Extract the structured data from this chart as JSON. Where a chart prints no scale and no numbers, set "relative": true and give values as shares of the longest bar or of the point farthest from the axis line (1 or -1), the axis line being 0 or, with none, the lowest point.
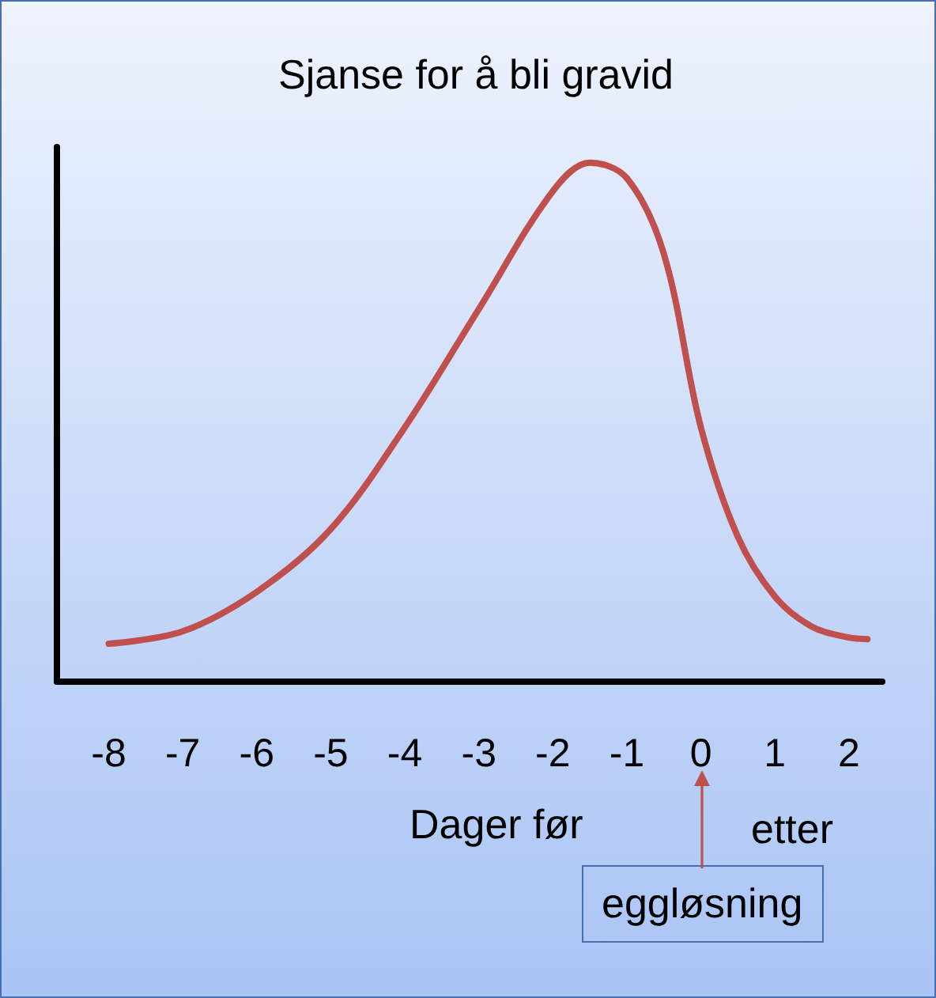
{
  "chart_data": {
    "type": "line",
    "title": "Sjanse for å bli gravid",
    "relative": true,
    "x": [
      -8,
      -7,
      -6,
      -5,
      -4,
      -3,
      -2,
      -1.5,
      -1,
      -0.5,
      0,
      0.5,
      1,
      1.5,
      2,
      2.25
    ],
    "series": [
      {
        "color": "#c0504d",
        "values": [
          0.073,
          0.097,
          0.173,
          0.294,
          0.49,
          0.718,
          0.945,
          1,
          0.97,
          0.824,
          0.49,
          0.279,
          0.164,
          0.106,
          0.085,
          0.082
        ]
      }
    ],
    "xlim": [
      -8.7,
      2.45
    ],
    "xticks": [
      -8,
      -7,
      -6,
      -5,
      -4,
      -3,
      -2,
      -1,
      0,
      1,
      2
    ],
    "grid": false,
    "marker": "none",
    "line_style": "solid",
    "annotations": [
      "Dager før",
      "etter",
      "eggløsning"
    ]
  }
}
